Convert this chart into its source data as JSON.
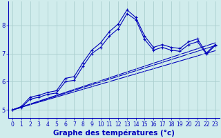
{
  "background_color": "#d0ecec",
  "grid_color": "#aacfcf",
  "line_color": "#0000bb",
  "xlabel": "Graphe des températures (°c)",
  "xlabel_fontsize": 7.5,
  "tick_fontsize": 5.5,
  "xlim": [
    -0.5,
    23.5
  ],
  "ylim": [
    4.7,
    8.85
  ],
  "yticks": [
    5,
    6,
    7,
    8
  ],
  "xticks": [
    0,
    1,
    2,
    3,
    4,
    5,
    6,
    7,
    8,
    9,
    10,
    11,
    12,
    13,
    14,
    15,
    16,
    17,
    18,
    19,
    20,
    21,
    22,
    23
  ],
  "series1_x": [
    0,
    1,
    2,
    3,
    4,
    5,
    6,
    7,
    8,
    9,
    10,
    11,
    12,
    13,
    14,
    15,
    16,
    17,
    18,
    19,
    20,
    21,
    22,
    23
  ],
  "series1_y": [
    5.0,
    5.12,
    5.45,
    5.52,
    5.62,
    5.68,
    6.12,
    6.18,
    6.68,
    7.12,
    7.38,
    7.78,
    8.05,
    8.55,
    8.28,
    7.62,
    7.22,
    7.32,
    7.22,
    7.18,
    7.42,
    7.52,
    7.02,
    7.32
  ],
  "series2_x": [
    0,
    1,
    2,
    3,
    4,
    5,
    6,
    7,
    8,
    9,
    10,
    11,
    12,
    13,
    14,
    15,
    16,
    17,
    18,
    19,
    20,
    21,
    22,
    23
  ],
  "series2_y": [
    5.0,
    5.08,
    5.38,
    5.45,
    5.55,
    5.6,
    6.0,
    6.05,
    6.55,
    7.0,
    7.22,
    7.62,
    7.88,
    8.42,
    8.2,
    7.5,
    7.12,
    7.22,
    7.12,
    7.08,
    7.32,
    7.42,
    6.98,
    7.28
  ],
  "line1_x": [
    0,
    23
  ],
  "line1_y": [
    5.0,
    7.28
  ],
  "line2_x": [
    0,
    23
  ],
  "line2_y": [
    5.0,
    7.1
  ],
  "line3_x": [
    0,
    23
  ],
  "line3_y": [
    5.0,
    7.38
  ]
}
